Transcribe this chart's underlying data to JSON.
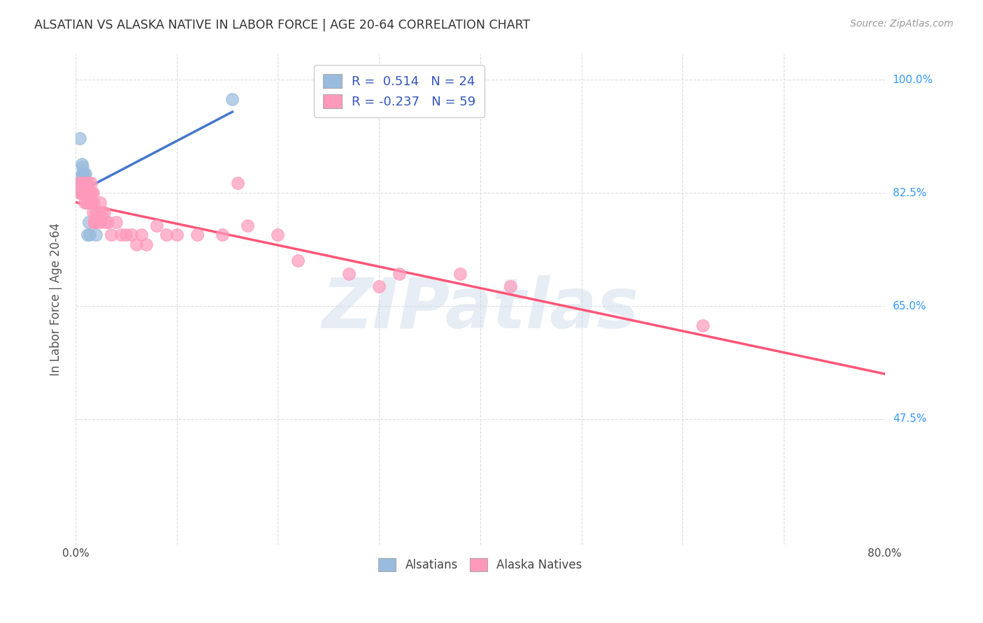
{
  "title": "ALSATIAN VS ALASKA NATIVE IN LABOR FORCE | AGE 20-64 CORRELATION CHART",
  "source": "Source: ZipAtlas.com",
  "ylabel": "In Labor Force | Age 20-64",
  "ytick_labels": [
    "100.0%",
    "82.5%",
    "65.0%",
    "47.5%"
  ],
  "ytick_values": [
    1.0,
    0.825,
    0.65,
    0.475
  ],
  "xmin": 0.0,
  "xmax": 0.8,
  "ymin": 0.28,
  "ymax": 1.04,
  "watermark": "ZIPatlas",
  "blue_color": "#99BBDD",
  "pink_color": "#FF99BB",
  "blue_line_color": "#4477CC",
  "pink_line_color": "#FF5577",
  "alsatian_scatter_x": [
    0.003,
    0.004,
    0.005,
    0.006,
    0.006,
    0.007,
    0.007,
    0.007,
    0.008,
    0.008,
    0.009,
    0.009,
    0.01,
    0.01,
    0.01,
    0.011,
    0.011,
    0.012,
    0.012,
    0.013,
    0.014,
    0.016,
    0.02,
    0.155
  ],
  "alsatian_scatter_y": [
    0.84,
    0.91,
    0.84,
    0.87,
    0.855,
    0.855,
    0.84,
    0.865,
    0.84,
    0.855,
    0.84,
    0.825,
    0.84,
    0.855,
    0.825,
    0.84,
    0.81,
    0.825,
    0.76,
    0.78,
    0.76,
    0.81,
    0.76,
    0.97
  ],
  "alaska_scatter_x": [
    0.003,
    0.004,
    0.005,
    0.006,
    0.006,
    0.007,
    0.008,
    0.008,
    0.009,
    0.01,
    0.01,
    0.011,
    0.011,
    0.012,
    0.012,
    0.013,
    0.013,
    0.014,
    0.015,
    0.015,
    0.016,
    0.016,
    0.017,
    0.017,
    0.018,
    0.018,
    0.019,
    0.02,
    0.021,
    0.022,
    0.024,
    0.025,
    0.026,
    0.028,
    0.03,
    0.032,
    0.035,
    0.04,
    0.045,
    0.05,
    0.055,
    0.06,
    0.065,
    0.07,
    0.08,
    0.09,
    0.1,
    0.12,
    0.145,
    0.16,
    0.17,
    0.2,
    0.22,
    0.27,
    0.3,
    0.32,
    0.38,
    0.43,
    0.62
  ],
  "alaska_scatter_y": [
    0.84,
    0.825,
    0.825,
    0.84,
    0.825,
    0.825,
    0.84,
    0.825,
    0.81,
    0.84,
    0.825,
    0.825,
    0.81,
    0.825,
    0.81,
    0.84,
    0.81,
    0.825,
    0.84,
    0.81,
    0.825,
    0.81,
    0.825,
    0.795,
    0.81,
    0.78,
    0.78,
    0.795,
    0.78,
    0.795,
    0.81,
    0.78,
    0.795,
    0.795,
    0.78,
    0.78,
    0.76,
    0.78,
    0.76,
    0.76,
    0.76,
    0.745,
    0.76,
    0.745,
    0.775,
    0.76,
    0.76,
    0.76,
    0.76,
    0.84,
    0.775,
    0.76,
    0.72,
    0.7,
    0.68,
    0.7,
    0.7,
    0.68,
    0.62
  ]
}
